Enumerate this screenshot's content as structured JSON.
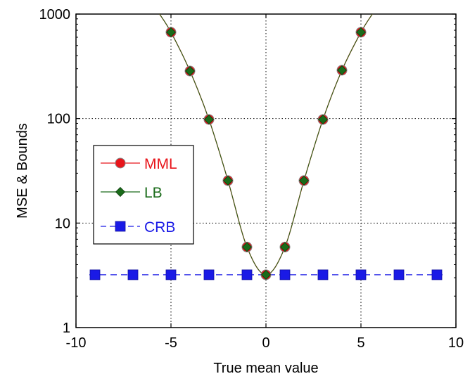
{
  "chart_data": {
    "type": "line",
    "xlabel": "True mean value",
    "ylabel": "MSE & Bounds",
    "xlim": [
      -10,
      10
    ],
    "ylim": [
      1,
      1000
    ],
    "yscale": "log",
    "grid": true,
    "legend_position": "left",
    "x_ticks": [
      "-10",
      "-5",
      "0",
      "5",
      "10"
    ],
    "y_ticks": [
      "1",
      "10",
      "100",
      "1000"
    ],
    "x_tick_values": [
      -10,
      -5,
      0,
      5,
      10
    ],
    "y_tick_values": [
      1,
      10,
      100,
      1000
    ],
    "curve": {
      "x": [
        -5.6,
        -5,
        -4,
        -3,
        -2,
        -1,
        0,
        1,
        2,
        3,
        4,
        5,
        5.6
      ],
      "y": [
        1000,
        670,
        285,
        98,
        25.5,
        5.9,
        3.2,
        5.9,
        25.5,
        98,
        290,
        670,
        1000
      ]
    },
    "series": [
      {
        "name": "MML",
        "color": "#e8141a",
        "marker": "circle",
        "x": [
          -5,
          -4,
          -3,
          -2,
          -1,
          0,
          1,
          2,
          3,
          4,
          5
        ],
        "y": [
          670,
          285,
          98,
          25.5,
          5.9,
          3.2,
          5.9,
          25.5,
          98,
          290,
          670
        ]
      },
      {
        "name": "LB",
        "color": "#1a6b1a",
        "marker": "diamond",
        "x": [
          -5,
          -4,
          -3,
          -2,
          -1,
          0,
          1,
          2,
          3,
          4,
          5
        ],
        "y": [
          670,
          285,
          98,
          25.5,
          5.9,
          3.2,
          5.9,
          25.5,
          98,
          290,
          670
        ]
      },
      {
        "name": "CRB",
        "color": "#1a1ae6",
        "marker": "square",
        "line": "dashed",
        "x": [
          -9,
          -7,
          -5,
          -3,
          -1,
          1,
          3,
          5,
          7,
          9
        ],
        "y": [
          3.2,
          3.2,
          3.2,
          3.2,
          3.2,
          3.2,
          3.2,
          3.2,
          3.2,
          3.2
        ]
      }
    ]
  }
}
